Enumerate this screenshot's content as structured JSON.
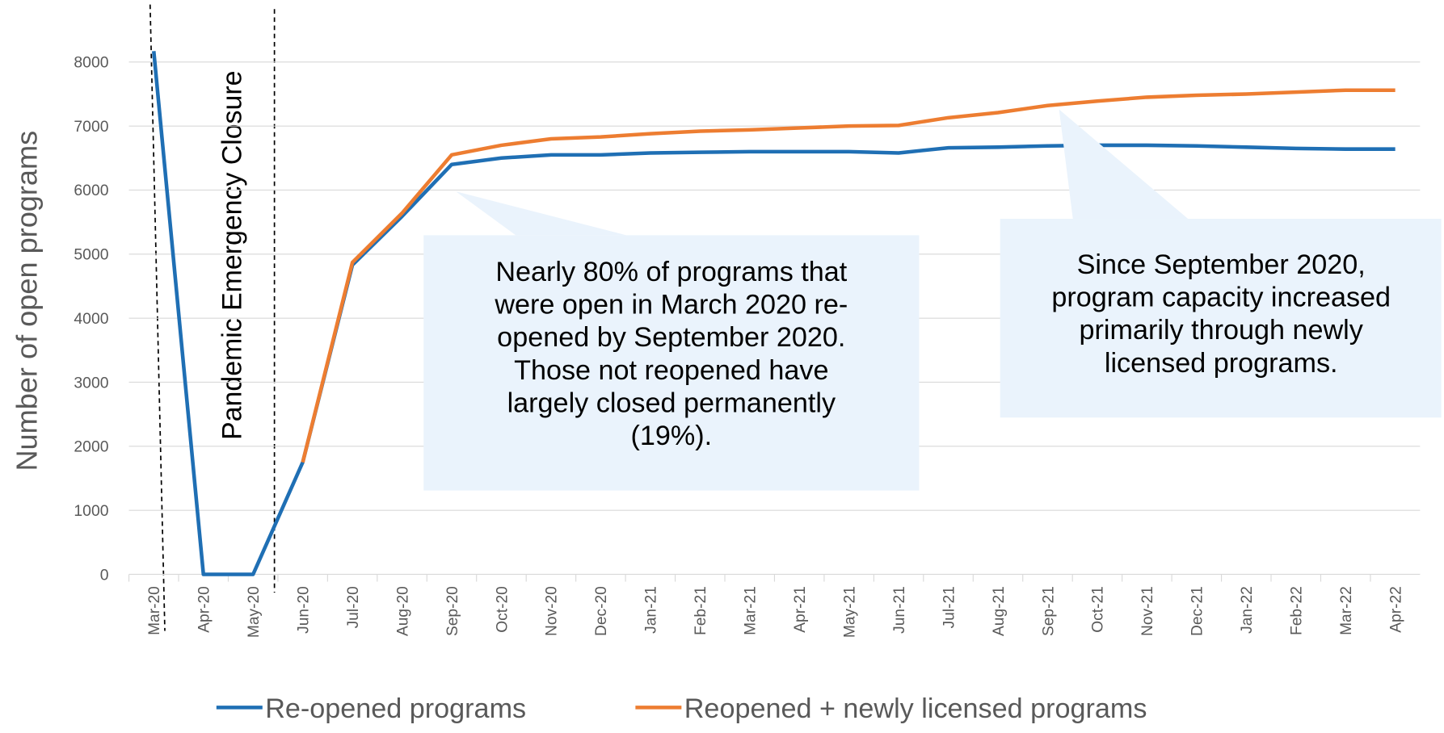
{
  "chart_data": {
    "type": "line",
    "y_label": "Number of open programs",
    "categories": [
      "Mar-20",
      "Apr-20",
      "May-20",
      "Jun-20",
      "Jul-20",
      "Aug-20",
      "Sep-20",
      "Oct-20",
      "Nov-20",
      "Dec-20",
      "Jan-21",
      "Feb-21",
      "Mar-21",
      "Apr-21",
      "May-21",
      "Jun-21",
      "Jul-21",
      "Aug-21",
      "Sep-21",
      "Oct-21",
      "Nov-21",
      "Dec-21",
      "Jan-22",
      "Feb-22",
      "Mar-22",
      "Apr-22"
    ],
    "series": [
      {
        "name": "Re-opened programs",
        "color": "#1f6fb4",
        "values": [
          8170,
          0,
          0,
          1750,
          4830,
          5590,
          6400,
          6500,
          6550,
          6550,
          6580,
          6590,
          6600,
          6600,
          6600,
          6580,
          6660,
          6670,
          6690,
          6700,
          6700,
          6690,
          6670,
          6650,
          6640,
          6640
        ]
      },
      {
        "name": "Reopened + newly licensed programs",
        "color": "#ed7d31",
        "values": [
          null,
          null,
          null,
          1750,
          4870,
          5640,
          6550,
          6700,
          6800,
          6830,
          6880,
          6920,
          6940,
          6970,
          7000,
          7010,
          7130,
          7210,
          7320,
          7390,
          7450,
          7480,
          7500,
          7530,
          7560,
          7560
        ]
      }
    ],
    "ylim": [
      0,
      8000
    ],
    "yticks": [
      0,
      1000,
      2000,
      3000,
      4000,
      5000,
      6000,
      7000,
      8000
    ],
    "grid": true,
    "legend": "bottom",
    "annotations": [
      {
        "text": "Pandemic Emergency Closure"
      },
      {
        "lines": [
          "Nearly 80% of programs that",
          "were open in March 2020 re-",
          "opened by September 2020.",
          "Those not reopened have",
          "largely closed permanently",
          "(19%)."
        ]
      },
      {
        "lines": [
          "Since September 2020,",
          "program capacity increased",
          "primarily through newly",
          "licensed programs."
        ]
      }
    ]
  }
}
